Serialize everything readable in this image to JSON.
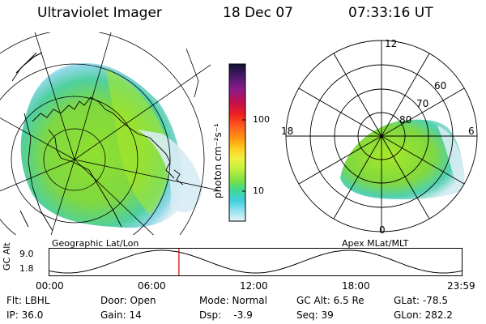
{
  "header": {
    "instrument": "Ultraviolet Imager",
    "date": "18 Dec 07",
    "time": "07:33:16 UT"
  },
  "colorbar": {
    "unit_label": "photon cm⁻²s⁻¹",
    "ticks": [
      "100",
      "10"
    ],
    "colors": [
      "#111133",
      "#4a1a6a",
      "#8a1a8a",
      "#c01050",
      "#ee2020",
      "#ff6020",
      "#ff9a10",
      "#ffd020",
      "#f0f040",
      "#c8f040",
      "#80e040",
      "#40d890",
      "#40d0e0",
      "#90e0f0",
      "#e8f4f8"
    ]
  },
  "left_panel": {
    "caption": "Geographic Lat/Lon"
  },
  "right_panel": {
    "caption": "Apex MLat/MLT",
    "mlt_labels": [
      "12",
      "18",
      "6",
      "0"
    ],
    "mlat_labels": [
      "60",
      "70",
      "80"
    ]
  },
  "timeline": {
    "ylabel": "GC Alt",
    "y_ticks": [
      "9.0",
      "1.8"
    ],
    "x_ticks": [
      "00:00",
      "06:00",
      "12:00",
      "18:00",
      "23:59"
    ],
    "marker_time": "07:33",
    "marker_color": "#cc0000"
  },
  "footer": {
    "row1": [
      "Flt: LBHL",
      "Door: Open",
      "Mode: Normal",
      "GC Alt: 6.5 Re",
      "GLat: -78.5"
    ],
    "row2": [
      "IP: 36.0",
      "Gain: 14",
      "Dsp:    -3.9",
      "Seq: 39",
      "GLon: 282.2"
    ]
  }
}
